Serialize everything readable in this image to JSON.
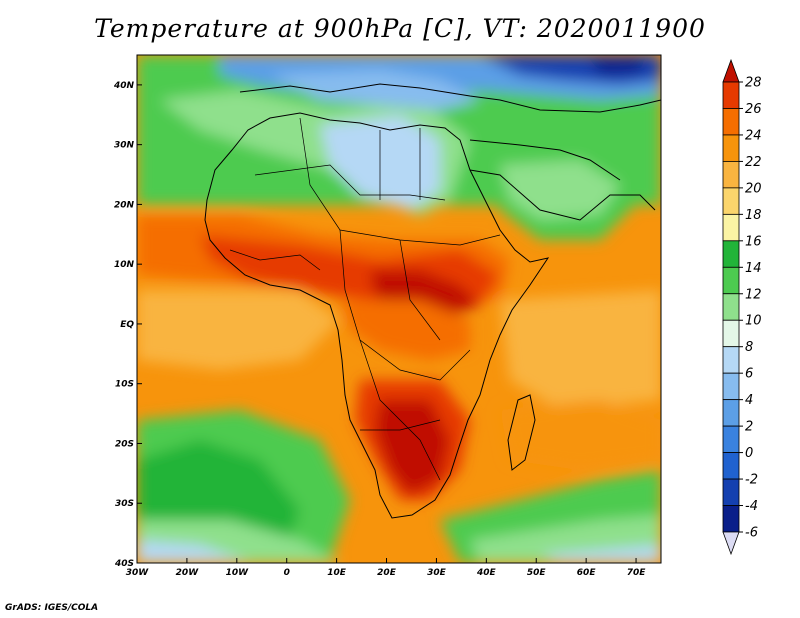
{
  "title": "Temperature at 900hPa [C], VT: 2020011900",
  "credit": "GrADS: IGES/COLA",
  "map": {
    "lon_ticks": [
      "30W",
      "20W",
      "10W",
      "0",
      "10E",
      "20E",
      "30E",
      "40E",
      "50E",
      "60E",
      "70E"
    ],
    "lat_ticks": [
      "40N",
      "30N",
      "20N",
      "10N",
      "EQ",
      "10S",
      "20S",
      "30S",
      "40S"
    ],
    "lon_range": [
      -30,
      75
    ],
    "lat_range": [
      -40,
      45
    ]
  },
  "colorbar": {
    "levels": [
      "28",
      "26",
      "24",
      "22",
      "20",
      "18",
      "16",
      "14",
      "12",
      "10",
      "8",
      "6",
      "4",
      "2",
      "0",
      "-2",
      "-4",
      "-6"
    ],
    "colors": [
      "#c01000",
      "#e63a00",
      "#f56e00",
      "#f7940c",
      "#f9b440",
      "#fbd56c",
      "#fbf4a4",
      "#22b439",
      "#4dcb50",
      "#8fe08c",
      "#e4f7e8",
      "#b5d8f5",
      "#87bcef",
      "#5c9fe6",
      "#3a82df",
      "#2062cf",
      "#1440b0",
      "#0a1f8a",
      "#dcdcf4"
    ]
  }
}
